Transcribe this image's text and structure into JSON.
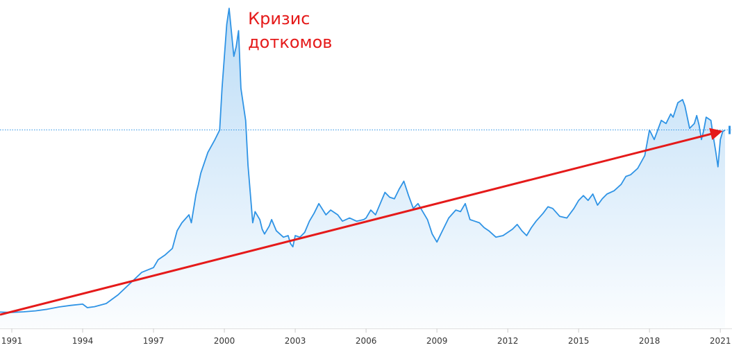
{
  "chart_data": {
    "type": "area",
    "xlim": [
      1990.5,
      2021.2
    ],
    "ylim": [
      0,
      100
    ],
    "grid": false,
    "legend": "none",
    "x_ticks": [
      {
        "x": 1991,
        "label": "1991"
      },
      {
        "x": 1994,
        "label": "1994"
      },
      {
        "x": 1997,
        "label": "1997"
      },
      {
        "x": 2000,
        "label": "2000"
      },
      {
        "x": 2003,
        "label": "2003"
      },
      {
        "x": 2006,
        "label": "2006"
      },
      {
        "x": 2009,
        "label": "2009"
      },
      {
        "x": 2012,
        "label": "2012"
      },
      {
        "x": 2015,
        "label": "2015"
      },
      {
        "x": 2018,
        "label": "2018"
      },
      {
        "x": 2021,
        "label": "2021"
      }
    ],
    "series": [
      {
        "color": "#2e93e5",
        "points": [
          [
            1990.5,
            5.1
          ],
          [
            1991.0,
            5.0
          ],
          [
            1991.5,
            5.2
          ],
          [
            1992.0,
            5.5
          ],
          [
            1992.5,
            6.0
          ],
          [
            1993.0,
            6.7
          ],
          [
            1993.5,
            7.2
          ],
          [
            1994.0,
            7.6
          ],
          [
            1994.2,
            6.5
          ],
          [
            1994.5,
            6.8
          ],
          [
            1995.0,
            7.8
          ],
          [
            1995.5,
            10.5
          ],
          [
            1996.0,
            14.0
          ],
          [
            1996.5,
            17.5
          ],
          [
            1997.0,
            19.0
          ],
          [
            1997.2,
            21.5
          ],
          [
            1997.5,
            23.0
          ],
          [
            1997.8,
            25.0
          ],
          [
            1998.0,
            30.5
          ],
          [
            1998.2,
            33.0
          ],
          [
            1998.5,
            35.5
          ],
          [
            1998.6,
            33.0
          ],
          [
            1998.8,
            42.0
          ],
          [
            1998.9,
            45.0
          ],
          [
            1999.0,
            48.5
          ],
          [
            1999.3,
            55.0
          ],
          [
            1999.6,
            59.0
          ],
          [
            1999.8,
            62.0
          ],
          [
            1999.9,
            75.0
          ],
          [
            2000.0,
            85.0
          ],
          [
            2000.1,
            95.0
          ],
          [
            2000.2,
            100.0
          ],
          [
            2000.4,
            85.0
          ],
          [
            2000.5,
            88.0
          ],
          [
            2000.6,
            93.0
          ],
          [
            2000.7,
            75.0
          ],
          [
            2000.9,
            65.0
          ],
          [
            2001.0,
            51.0
          ],
          [
            2001.2,
            33.0
          ],
          [
            2001.3,
            36.5
          ],
          [
            2001.5,
            34.0
          ],
          [
            2001.6,
            31.0
          ],
          [
            2001.7,
            29.5
          ],
          [
            2001.9,
            32.0
          ],
          [
            2002.0,
            34.0
          ],
          [
            2002.2,
            30.5
          ],
          [
            2002.5,
            28.5
          ],
          [
            2002.7,
            29.0
          ],
          [
            2002.8,
            26.5
          ],
          [
            2002.9,
            25.5
          ],
          [
            2003.0,
            29.0
          ],
          [
            2003.2,
            28.5
          ],
          [
            2003.4,
            30.0
          ],
          [
            2003.6,
            33.5
          ],
          [
            2003.8,
            36.0
          ],
          [
            2004.0,
            39.0
          ],
          [
            2004.3,
            35.5
          ],
          [
            2004.5,
            37.0
          ],
          [
            2004.8,
            35.5
          ],
          [
            2005.0,
            33.5
          ],
          [
            2005.3,
            34.5
          ],
          [
            2005.6,
            33.5
          ],
          [
            2005.9,
            34.0
          ],
          [
            2006.0,
            34.5
          ],
          [
            2006.2,
            37.0
          ],
          [
            2006.4,
            35.5
          ],
          [
            2006.6,
            39.0
          ],
          [
            2006.8,
            42.5
          ],
          [
            2007.0,
            41.0
          ],
          [
            2007.2,
            40.5
          ],
          [
            2007.4,
            43.5
          ],
          [
            2007.6,
            46.0
          ],
          [
            2007.8,
            41.5
          ],
          [
            2008.0,
            37.5
          ],
          [
            2008.2,
            39.0
          ],
          [
            2008.4,
            36.5
          ],
          [
            2008.6,
            34.0
          ],
          [
            2008.8,
            29.5
          ],
          [
            2009.0,
            27.0
          ],
          [
            2009.2,
            30.0
          ],
          [
            2009.5,
            34.5
          ],
          [
            2009.8,
            37.0
          ],
          [
            2010.0,
            36.5
          ],
          [
            2010.2,
            39.0
          ],
          [
            2010.4,
            34.0
          ],
          [
            2010.6,
            33.5
          ],
          [
            2010.8,
            33.0
          ],
          [
            2011.0,
            31.5
          ],
          [
            2011.2,
            30.5
          ],
          [
            2011.5,
            28.5
          ],
          [
            2011.8,
            29.0
          ],
          [
            2012.0,
            30.0
          ],
          [
            2012.2,
            31.0
          ],
          [
            2012.4,
            32.5
          ],
          [
            2012.6,
            30.5
          ],
          [
            2012.8,
            29.0
          ],
          [
            2013.0,
            31.5
          ],
          [
            2013.2,
            33.5
          ],
          [
            2013.5,
            36.0
          ],
          [
            2013.7,
            38.0
          ],
          [
            2013.9,
            37.5
          ],
          [
            2014.2,
            35.0
          ],
          [
            2014.5,
            34.5
          ],
          [
            2014.8,
            37.5
          ],
          [
            2015.0,
            40.0
          ],
          [
            2015.2,
            41.5
          ],
          [
            2015.4,
            40.0
          ],
          [
            2015.6,
            42.0
          ],
          [
            2015.8,
            38.5
          ],
          [
            2016.0,
            40.5
          ],
          [
            2016.2,
            42.0
          ],
          [
            2016.5,
            43.0
          ],
          [
            2016.8,
            45.0
          ],
          [
            2017.0,
            47.5
          ],
          [
            2017.2,
            48.0
          ],
          [
            2017.5,
            50.0
          ],
          [
            2017.8,
            54.0
          ],
          [
            2017.9,
            58.0
          ],
          [
            2018.0,
            62.0
          ],
          [
            2018.2,
            59.0
          ],
          [
            2018.5,
            65.0
          ],
          [
            2018.7,
            64.0
          ],
          [
            2018.9,
            67.0
          ],
          [
            2019.0,
            66.0
          ],
          [
            2019.2,
            70.5
          ],
          [
            2019.4,
            71.5
          ],
          [
            2019.5,
            69.5
          ],
          [
            2019.7,
            62.5
          ],
          [
            2019.9,
            64.0
          ],
          [
            2020.0,
            66.5
          ],
          [
            2020.1,
            63.5
          ],
          [
            2020.2,
            59.0
          ],
          [
            2020.3,
            62.0
          ],
          [
            2020.4,
            66.0
          ],
          [
            2020.6,
            65.0
          ],
          [
            2020.7,
            60.0
          ],
          [
            2020.8,
            55.5
          ],
          [
            2020.9,
            50.5
          ],
          [
            2021.0,
            59.0
          ],
          [
            2021.1,
            61.5
          ],
          [
            2021.2,
            62.0
          ]
        ]
      }
    ],
    "trend_line": {
      "from": [
        1990.5,
        4.3
      ],
      "to": [
        2021.0,
        61.5
      ],
      "color": "#e51a1a"
    },
    "reference_line": {
      "y": 62.0,
      "color": "#2e93e5"
    },
    "annotations": [
      {
        "lines": [
          "Кризис",
          "доткомов"
        ],
        "x": 2001.0,
        "y": 95.0,
        "color": "#e51a1a"
      }
    ]
  }
}
